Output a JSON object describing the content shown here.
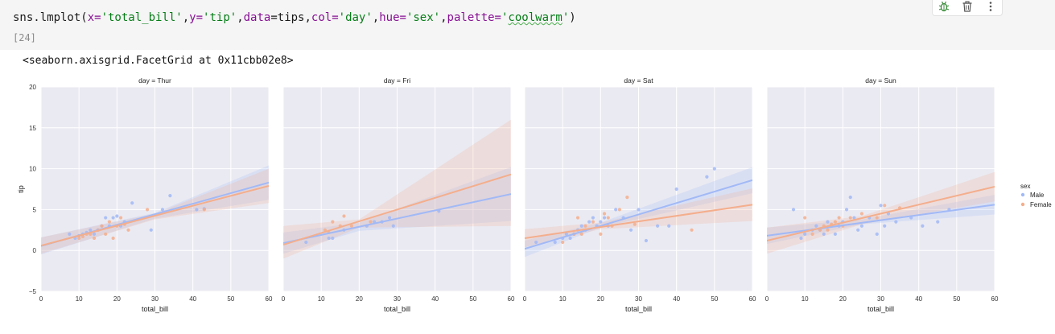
{
  "cell": {
    "code_parts": {
      "p1": "sns.lmplot(",
      "p2": "x=",
      "p3": "'total_bill'",
      "p4": ",",
      "p5": "y=",
      "p6": "'tip'",
      "p7": ",",
      "p8": "data",
      "p9": "=tips,",
      "p10": "col=",
      "p11": "'day'",
      "p12": ",",
      "p13": "hue=",
      "p14": "'sex'",
      "p15": ",",
      "p16": "palette=",
      "p17": "'",
      "p18": "coolwarm",
      "p19": "'",
      "p20": ")"
    },
    "execution_count": "[24]",
    "output_text": "<seaborn.axisgrid.FacetGrid at 0x11cbb02e8>",
    "toolbar_icons": [
      "bug-icon",
      "trash-icon",
      "more-icon"
    ]
  },
  "colors": {
    "male": "#a1b9f6",
    "female": "#f4ae8c",
    "panel_bg": "#eaeaf2",
    "grid": "#ffffff"
  },
  "chart_data": {
    "type": "scatter",
    "xlabel": "total_bill",
    "ylabel": "tip",
    "xlim": [
      0,
      60
    ],
    "ylim": [
      -5,
      20
    ],
    "xticks": [
      0,
      10,
      20,
      30,
      40,
      50,
      60
    ],
    "yticks": [
      -5,
      0,
      5,
      10,
      15,
      20
    ],
    "grid": true,
    "legend": {
      "title": "sex",
      "placement": "right",
      "entries": [
        "Male",
        "Female"
      ]
    },
    "panels": [
      {
        "title": "day = Thur",
        "male_points": [
          [
            7.5,
            2.0
          ],
          [
            9,
            1.5
          ],
          [
            10,
            1.8
          ],
          [
            11,
            2.0
          ],
          [
            12,
            2.2
          ],
          [
            13,
            2.5
          ],
          [
            14,
            2.0
          ],
          [
            15,
            2.5
          ],
          [
            16,
            3.0
          ],
          [
            17,
            4.0
          ],
          [
            18,
            3.0
          ],
          [
            19,
            4.0
          ],
          [
            20,
            4.2
          ],
          [
            21,
            3.0
          ],
          [
            22,
            3.5
          ],
          [
            24,
            5.8
          ],
          [
            29,
            2.5
          ],
          [
            32,
            5.0
          ],
          [
            34,
            6.7
          ],
          [
            41,
            5.0
          ],
          [
            43,
            5.1
          ]
        ],
        "female_points": [
          [
            10,
            1.5
          ],
          [
            11,
            1.7
          ],
          [
            12,
            2.0
          ],
          [
            13,
            2.0
          ],
          [
            14,
            1.5
          ],
          [
            15,
            2.5
          ],
          [
            16,
            3.0
          ],
          [
            17,
            2.0
          ],
          [
            18,
            3.5
          ],
          [
            19,
            1.5
          ],
          [
            20,
            3.0
          ],
          [
            21,
            4.0
          ],
          [
            22,
            3.2
          ],
          [
            23,
            2.5
          ],
          [
            28,
            5.0
          ],
          [
            43,
            5.0
          ]
        ],
        "male_fit": [
          [
            0,
            0.55
          ],
          [
            60,
            8.3
          ]
        ],
        "female_fit": [
          [
            0,
            0.6
          ],
          [
            60,
            7.9
          ]
        ],
        "male_ci": [
          [
            0,
            -0.5,
            1.6
          ],
          [
            30,
            3.9,
            4.6
          ],
          [
            60,
            6.2,
            10.4
          ]
        ],
        "female_ci": [
          [
            0,
            -0.4,
            1.6
          ],
          [
            30,
            3.8,
            4.5
          ],
          [
            60,
            5.8,
            10.0
          ]
        ]
      },
      {
        "title": "day = Fri",
        "male_points": [
          [
            6,
            1.0
          ],
          [
            12,
            1.5
          ],
          [
            13,
            1.5
          ],
          [
            16,
            2.5
          ],
          [
            22,
            3.0
          ],
          [
            24,
            3.5
          ],
          [
            26,
            3.5
          ],
          [
            28,
            4.0
          ],
          [
            29,
            3.0
          ],
          [
            41,
            4.8
          ]
        ],
        "female_points": [
          [
            11,
            2.5
          ],
          [
            12,
            2.2
          ],
          [
            13,
            3.5
          ],
          [
            15,
            3.0
          ],
          [
            16,
            4.2
          ],
          [
            18,
            3.0
          ],
          [
            23,
            3.5
          ]
        ],
        "male_fit": [
          [
            0,
            0.9
          ],
          [
            60,
            6.9
          ]
        ],
        "female_fit": [
          [
            0,
            0.7
          ],
          [
            60,
            9.3
          ]
        ],
        "male_ci": [
          [
            0,
            -0.4,
            2.2
          ],
          [
            20,
            2.4,
            3.4
          ],
          [
            60,
            3.6,
            10.2
          ]
        ],
        "female_ci": [
          [
            0,
            -1.0,
            3.0
          ],
          [
            20,
            2.8,
            3.8
          ],
          [
            60,
            3.0,
            16.0
          ]
        ]
      },
      {
        "title": "day = Sat",
        "male_points": [
          [
            3,
            1.0
          ],
          [
            8,
            1.0
          ],
          [
            10,
            1.5
          ],
          [
            11,
            2.0
          ],
          [
            12,
            1.5
          ],
          [
            13,
            2.0
          ],
          [
            14,
            2.5
          ],
          [
            15,
            3.0
          ],
          [
            16,
            2.5
          ],
          [
            17,
            3.5
          ],
          [
            18,
            4.0
          ],
          [
            19,
            3.0
          ],
          [
            20,
            3.5
          ],
          [
            21,
            4.0
          ],
          [
            22,
            3.0
          ],
          [
            24,
            5.0
          ],
          [
            26,
            4.0
          ],
          [
            28,
            2.5
          ],
          [
            30,
            5.0
          ],
          [
            32,
            1.2
          ],
          [
            35,
            3.0
          ],
          [
            38,
            3.0
          ],
          [
            40,
            7.5
          ],
          [
            48,
            9.0
          ],
          [
            50,
            10.0
          ]
        ],
        "female_points": [
          [
            10,
            1.0
          ],
          [
            13,
            2.0
          ],
          [
            14,
            4.0
          ],
          [
            15,
            2.0
          ],
          [
            16,
            3.0
          ],
          [
            18,
            3.5
          ],
          [
            20,
            2.0
          ],
          [
            21,
            4.5
          ],
          [
            22,
            4.0
          ],
          [
            23,
            3.0
          ],
          [
            25,
            5.0
          ],
          [
            27,
            6.5
          ],
          [
            29,
            3.2
          ],
          [
            44,
            2.5
          ]
        ],
        "male_fit": [
          [
            0,
            0.2
          ],
          [
            60,
            8.6
          ]
        ],
        "female_fit": [
          [
            0,
            1.5
          ],
          [
            60,
            5.6
          ]
        ],
        "male_ci": [
          [
            0,
            -0.8,
            1.2
          ],
          [
            20,
            2.8,
            3.4
          ],
          [
            60,
            7.0,
            10.2
          ]
        ],
        "female_ci": [
          [
            0,
            0.4,
            2.6
          ],
          [
            20,
            2.6,
            3.4
          ],
          [
            60,
            3.6,
            7.6
          ]
        ]
      },
      {
        "title": "day = Sun",
        "male_points": [
          [
            7,
            5.0
          ],
          [
            9,
            1.5
          ],
          [
            10,
            2.0
          ],
          [
            12,
            2.5
          ],
          [
            13,
            3.0
          ],
          [
            14,
            2.5
          ],
          [
            15,
            2.0
          ],
          [
            16,
            3.5
          ],
          [
            17,
            3.0
          ],
          [
            18,
            2.0
          ],
          [
            19,
            3.0
          ],
          [
            20,
            3.5
          ],
          [
            21,
            5.0
          ],
          [
            22,
            6.5
          ],
          [
            23,
            4.0
          ],
          [
            24,
            2.5
          ],
          [
            25,
            3.0
          ],
          [
            27,
            4.0
          ],
          [
            29,
            2.0
          ],
          [
            30,
            5.5
          ],
          [
            31,
            3.0
          ],
          [
            32,
            4.5
          ],
          [
            34,
            3.5
          ],
          [
            38,
            4.0
          ],
          [
            41,
            3.0
          ],
          [
            45,
            3.5
          ],
          [
            48,
            5.0
          ]
        ],
        "female_points": [
          [
            10,
            4.0
          ],
          [
            12,
            2.0
          ],
          [
            14,
            2.5
          ],
          [
            15,
            3.0
          ],
          [
            16,
            2.5
          ],
          [
            17,
            3.2
          ],
          [
            18,
            3.5
          ],
          [
            19,
            4.0
          ],
          [
            20,
            3.0
          ],
          [
            22,
            4.0
          ],
          [
            25,
            4.5
          ],
          [
            29,
            4.0
          ],
          [
            31,
            5.5
          ],
          [
            35,
            5.2
          ]
        ],
        "male_fit": [
          [
            0,
            1.8
          ],
          [
            60,
            5.6
          ]
        ],
        "female_fit": [
          [
            0,
            1.2
          ],
          [
            60,
            7.8
          ]
        ],
        "male_ci": [
          [
            0,
            0.8,
            2.8
          ],
          [
            25,
            3.2,
            3.8
          ],
          [
            60,
            4.4,
            6.8
          ]
        ],
        "female_ci": [
          [
            0,
            -0.4,
            2.8
          ],
          [
            25,
            3.2,
            4.2
          ],
          [
            60,
            6.0,
            9.6
          ]
        ]
      }
    ]
  }
}
